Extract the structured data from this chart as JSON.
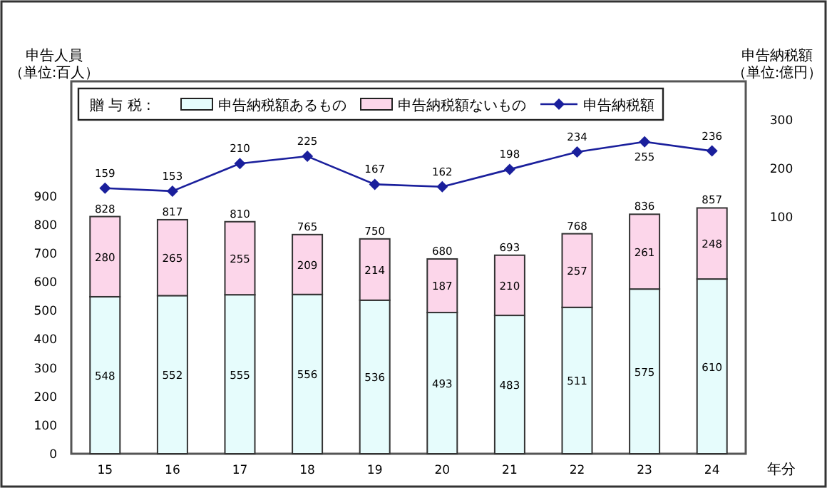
{
  "chart_data": {
    "type": "bar",
    "stacked": true,
    "categories": [
      "15",
      "16",
      "17",
      "18",
      "19",
      "20",
      "21",
      "22",
      "23",
      "24"
    ],
    "series": [
      {
        "name": "申告納税額あるもの",
        "color": "#e6fcfc",
        "values": [
          548,
          552,
          555,
          556,
          536,
          493,
          483,
          511,
          575,
          610
        ]
      },
      {
        "name": "申告納税額ないもの",
        "color": "#fcd6ea",
        "values": [
          280,
          265,
          255,
          209,
          214,
          187,
          210,
          257,
          261,
          248
        ]
      },
      {
        "name": "申告納税額",
        "type": "line",
        "axis": "y2",
        "color": "#1a1f9c",
        "values": [
          159,
          153,
          210,
          225,
          167,
          162,
          198,
          234,
          255,
          236
        ]
      }
    ],
    "totals": [
      "828",
      "817",
      "810",
      "765",
      "750",
      "680",
      "693",
      "768",
      "836",
      "857"
    ],
    "data_labels": true,
    "marker": "diamond",
    "legend": "top left",
    "legend_title": "贈 与 税 :",
    "ylabel": "申告人員（単位:百人）",
    "y2label": "申告納税額（単位:億円）",
    "xlabel": "年分",
    "ylim": [
      0,
      1300
    ],
    "yticks": [
      0,
      100,
      200,
      300,
      400,
      500,
      600,
      700,
      800,
      900
    ],
    "y2lim": [
      -390,
      380
    ],
    "y2ticks": [
      100,
      200,
      300
    ]
  }
}
